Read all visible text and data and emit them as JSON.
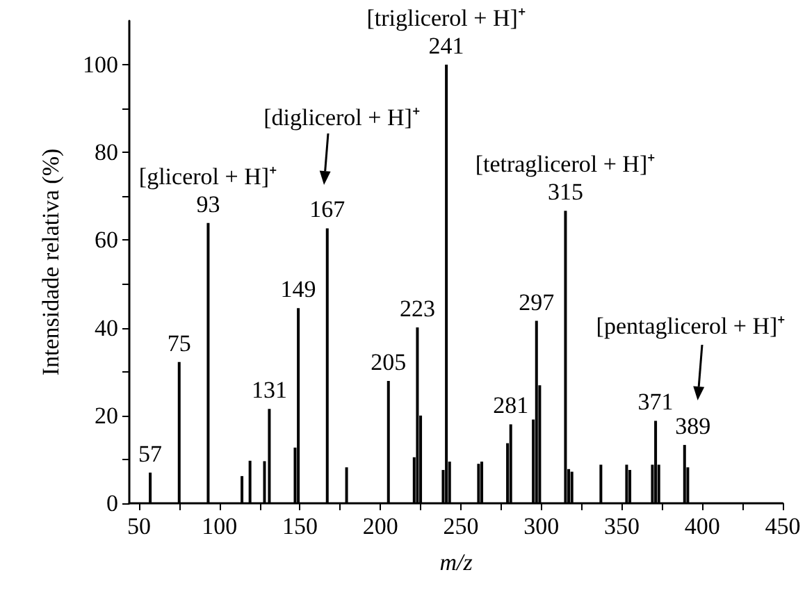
{
  "chart_data": {
    "type": "bar",
    "xlabel": "m/z",
    "ylabel": "Intensidade relativa (%)",
    "x": [
      57,
      75,
      93,
      114,
      119,
      128,
      131,
      147,
      149,
      167,
      179,
      205,
      221,
      223,
      225,
      239,
      241,
      243,
      261,
      263,
      279,
      281,
      295,
      297,
      299,
      315,
      317,
      319,
      337,
      353,
      355,
      369,
      371,
      373,
      389,
      391
    ],
    "values": [
      7,
      32.2,
      63.9,
      6.2,
      9.7,
      9.6,
      21.5,
      12.7,
      44.5,
      62.7,
      8.2,
      27.9,
      10.5,
      40.1,
      20,
      7.6,
      100,
      9.5,
      9,
      9.5,
      13.7,
      18,
      19.1,
      41.6,
      26.9,
      66.7,
      7.8,
      7.2,
      8.8,
      8.8,
      7.6,
      8.8,
      18.8,
      8.8,
      13.3,
      8.2
    ],
    "color": "#000000",
    "xlim": [
      44,
      450
    ],
    "xticks": [
      50,
      {
        "value": 75,
        "label": null
      },
      100,
      {
        "value": 125,
        "label": null
      },
      150,
      {
        "value": 175,
        "label": null
      },
      200,
      {
        "value": 225,
        "label": null
      },
      250,
      {
        "value": 275,
        "label": null
      },
      300,
      {
        "value": 325,
        "label": null
      },
      350,
      {
        "value": 375,
        "label": null
      },
      400,
      {
        "value": 425,
        "label": null
      },
      450
    ],
    "ylim": [
      0,
      110
    ],
    "yticks": [
      0,
      {
        "value": 10,
        "label": null
      },
      20,
      {
        "value": 30,
        "label": null
      },
      40,
      {
        "value": 50,
        "label": null
      },
      60,
      {
        "value": 70,
        "label": null
      },
      80,
      {
        "value": 90,
        "label": null
      },
      100
    ],
    "annotations": [
      {
        "text": "57",
        "x": 57,
        "y": 7
      },
      {
        "text": "75",
        "x": 75,
        "y": 32.2
      },
      {
        "text": "93",
        "x": 93,
        "y": 63.9
      },
      {
        "text": "131",
        "x": 131,
        "y": 21.5
      },
      {
        "text": "149",
        "x": 149,
        "y": 44.5
      },
      {
        "text": "167",
        "x": 167,
        "y": 62.7
      },
      {
        "text": "205",
        "x": 205,
        "y": 27.9
      },
      {
        "text": "223",
        "x": 223,
        "y": 40.1
      },
      {
        "text": "241",
        "x": 241,
        "y": 100
      },
      {
        "text": "281",
        "x": 281,
        "y": 18
      },
      {
        "text": "297",
        "x": 297,
        "y": 41.6
      },
      {
        "text": "315",
        "x": 315,
        "y": 66.7
      },
      {
        "text": "371",
        "x": 371,
        "y": 18.8
      },
      {
        "text": "389",
        "x": 389,
        "y": 13.3
      },
      {
        "text": "[glicerol + H]⁺",
        "x": 93,
        "y": 63.9
      },
      "[diglicerol + H]⁺",
      {
        "text": "[triglicerol + H]⁺",
        "x": 241,
        "y": 100
      },
      {
        "text": "[tetraglicerol + H]⁺",
        "x": 315,
        "y": 66.7
      },
      "[pentaglicerol + H]⁺"
    ]
  }
}
